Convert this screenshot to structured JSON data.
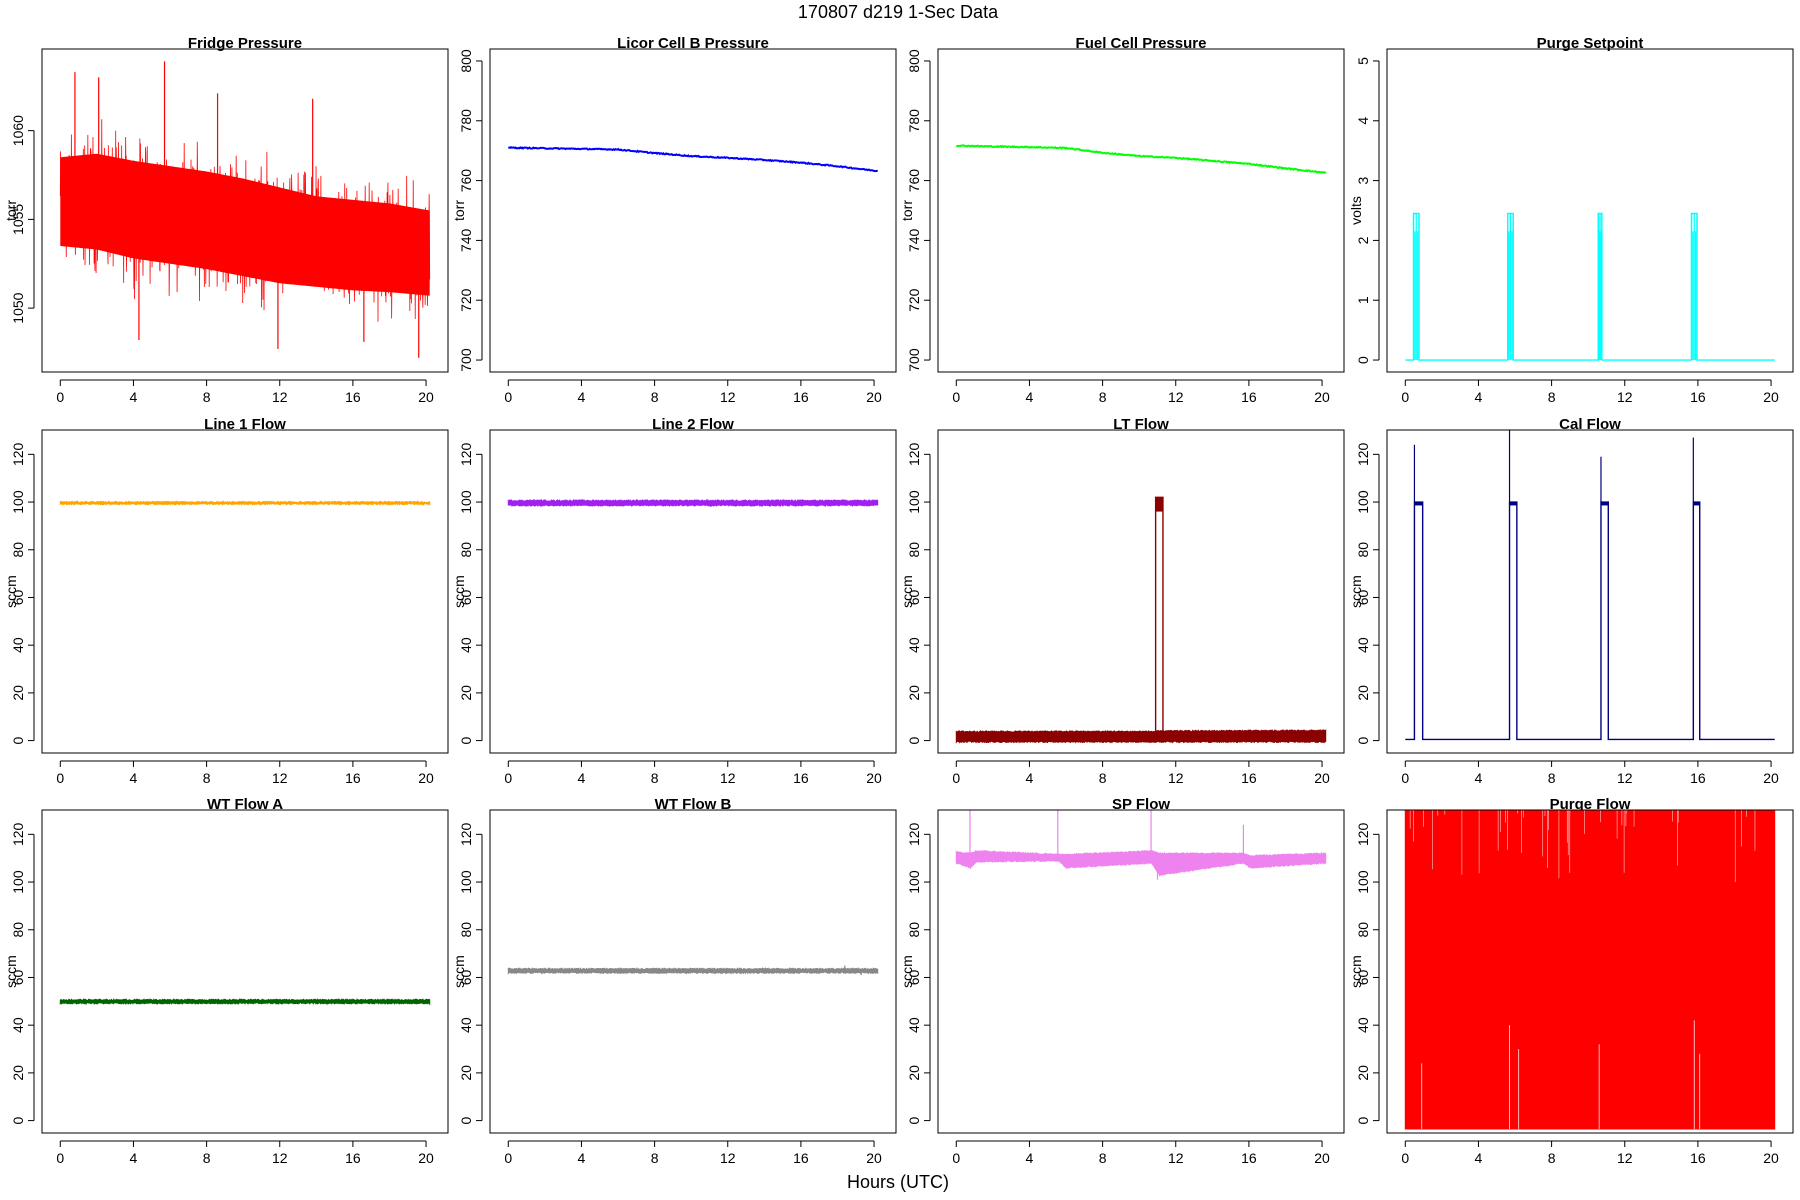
{
  "figure": {
    "title": "170807   d219   1-Sec Data",
    "xlabel": "Hours (UTC)"
  },
  "chart_data": [
    {
      "type": "line",
      "title": "Fridge Pressure",
      "ylabel": "torr",
      "color": "#ff0000",
      "style": "noise",
      "xlim": [
        -1,
        21.2
      ],
      "ylim": [
        1046.4,
        1064.6
      ],
      "xticks": [
        0,
        4,
        8,
        12,
        16,
        20
      ],
      "yticks": [
        1050,
        1055,
        1060
      ],
      "x": [
        0,
        2,
        4,
        6,
        8,
        10,
        12,
        14,
        16,
        18,
        20.2
      ],
      "low": [
        1052.0,
        1051.8,
        1051.3,
        1051.0,
        1050.7,
        1050.3,
        1049.9,
        1049.7,
        1049.5,
        1049.4,
        1049.2
      ],
      "high": [
        1060.0,
        1060.2,
        1059.8,
        1059.5,
        1059.2,
        1058.8,
        1058.3,
        1057.8,
        1057.6,
        1057.4,
        1057.0
      ],
      "spikes": [
        [
          0.8,
          1063.3
        ],
        [
          2.1,
          1063.0
        ],
        [
          5.7,
          1063.9
        ],
        [
          8.6,
          1062.1
        ],
        [
          13.8,
          1061.8
        ],
        [
          4.3,
          1048.2
        ],
        [
          11.9,
          1047.7
        ],
        [
          16.6,
          1048.1
        ],
        [
          19.6,
          1047.2
        ]
      ]
    },
    {
      "type": "line",
      "title": "Licor Cell B Pressure",
      "ylabel": "torr",
      "color": "#0000ff",
      "style": "line",
      "xlim": [
        -1,
        21.2
      ],
      "ylim": [
        696,
        804
      ],
      "xticks": [
        0,
        4,
        8,
        12,
        16,
        20
      ],
      "yticks": [
        700,
        720,
        740,
        760,
        780,
        800
      ],
      "x": [
        0,
        2,
        4,
        6,
        8,
        10,
        12,
        14,
        16,
        18,
        20.2
      ],
      "y": [
        771.0,
        770.8,
        770.6,
        770.4,
        769.2,
        768.2,
        767.6,
        766.9,
        766.0,
        764.8,
        763.2
      ]
    },
    {
      "type": "line",
      "title": "Fuel Cell Pressure",
      "ylabel": "torr",
      "color": "#00ff00",
      "style": "line",
      "xlim": [
        -1,
        21.2
      ],
      "ylim": [
        696,
        804
      ],
      "xticks": [
        0,
        4,
        8,
        12,
        16,
        20
      ],
      "yticks": [
        700,
        720,
        740,
        760,
        780,
        800
      ],
      "x": [
        0,
        2,
        4,
        6,
        8,
        10,
        12,
        14,
        16,
        18,
        20.2
      ],
      "y": [
        771.7,
        771.4,
        771.2,
        770.9,
        769.3,
        768.2,
        767.6,
        766.6,
        765.6,
        764.1,
        762.6
      ]
    },
    {
      "type": "line",
      "title": "Purge Setpoint",
      "ylabel": "volts",
      "color": "#00ffff",
      "style": "pulse",
      "xlim": [
        -1,
        21.2
      ],
      "ylim": [
        -0.2,
        5.2
      ],
      "xticks": [
        0,
        4,
        8,
        12,
        16,
        20
      ],
      "yticks": [
        0,
        1,
        2,
        3,
        4,
        5
      ],
      "x": [
        0,
        20.2
      ],
      "y": [
        0,
        0
      ],
      "pulses": [
        [
          0.45,
          0.75,
          2.45
        ],
        [
          5.6,
          5.9,
          2.45
        ],
        [
          10.55,
          10.75,
          2.45
        ],
        [
          15.65,
          15.95,
          2.45
        ]
      ]
    },
    {
      "type": "line",
      "title": "Line 1 Flow",
      "ylabel": "sccm",
      "color": "#ffa500",
      "style": "band",
      "xlim": [
        -1,
        21.2
      ],
      "ylim": [
        -5.2,
        130.2
      ],
      "xticks": [
        0,
        4,
        8,
        12,
        16,
        20
      ],
      "yticks": [
        0,
        20,
        40,
        60,
        80,
        100,
        120
      ],
      "x": [
        0,
        20.2
      ],
      "low": [
        99.2,
        99.2
      ],
      "high": [
        100.0,
        100.0
      ]
    },
    {
      "type": "line",
      "title": "Line 2 Flow",
      "ylabel": "sccm",
      "color": "#a020f0",
      "style": "band",
      "xlim": [
        -1,
        21.2
      ],
      "ylim": [
        -5.2,
        130.2
      ],
      "xticks": [
        0,
        4,
        8,
        12,
        16,
        20
      ],
      "yticks": [
        0,
        20,
        40,
        60,
        80,
        100,
        120
      ],
      "x": [
        0,
        20.2
      ],
      "low": [
        98.6,
        98.6
      ],
      "high": [
        100.6,
        100.6
      ]
    },
    {
      "type": "line",
      "title": "LT Flow",
      "ylabel": "sccm",
      "color": "#8b0000",
      "style": "band",
      "xlim": [
        -1,
        21.2
      ],
      "ylim": [
        -5.2,
        130.2
      ],
      "xticks": [
        0,
        4,
        8,
        12,
        16,
        20
      ],
      "yticks": [
        0,
        20,
        40,
        60,
        80,
        100,
        120
      ],
      "x": [
        0,
        10.85,
        11.3,
        20.2
      ],
      "low": [
        -0.5,
        -0.5,
        -0.5,
        -0.5
      ],
      "high": [
        3.8,
        3.8,
        4.0,
        4.2
      ],
      "pulses": [
        [
          10.9,
          11.3,
          102
        ]
      ]
    },
    {
      "type": "line",
      "title": "Cal Flow",
      "ylabel": "sccm",
      "color": "#000080",
      "style": "pulse",
      "xlim": [
        -1,
        21.2
      ],
      "ylim": [
        -5.2,
        130.2
      ],
      "xticks": [
        0,
        4,
        8,
        12,
        16,
        20
      ],
      "yticks": [
        0,
        20,
        40,
        60,
        80,
        100,
        120
      ],
      "x": [
        0,
        20.2
      ],
      "y": [
        0.5,
        0.5
      ],
      "pulses": [
        [
          0.5,
          0.95,
          100
        ],
        [
          5.7,
          6.1,
          100
        ],
        [
          10.7,
          11.1,
          100
        ],
        [
          15.75,
          16.1,
          100
        ]
      ],
      "spikes": [
        [
          0.5,
          124
        ],
        [
          5.7,
          130
        ],
        [
          10.7,
          119
        ],
        [
          15.75,
          127
        ]
      ]
    },
    {
      "type": "line",
      "title": "WT Flow A",
      "ylabel": "sccm",
      "color": "#006400",
      "style": "band",
      "xlim": [
        -1,
        21.2
      ],
      "ylim": [
        -5.2,
        130.2
      ],
      "xticks": [
        0,
        4,
        8,
        12,
        16,
        20
      ],
      "yticks": [
        0,
        20,
        40,
        60,
        80,
        100,
        120
      ],
      "x": [
        0,
        20.2
      ],
      "low": [
        49.2,
        49.2
      ],
      "high": [
        50.6,
        50.6
      ]
    },
    {
      "type": "line",
      "title": "WT Flow B",
      "ylabel": "sccm",
      "color": "#888888",
      "style": "band",
      "xlim": [
        -1,
        21.2
      ],
      "ylim": [
        -5.2,
        130.2
      ],
      "xticks": [
        0,
        4,
        8,
        12,
        16,
        20
      ],
      "yticks": [
        0,
        20,
        40,
        60,
        80,
        100,
        120
      ],
      "x": [
        0,
        20.2
      ],
      "low": [
        62.0,
        62.0
      ],
      "high": [
        63.6,
        63.6
      ],
      "spikes": [
        [
          18.4,
          65
        ],
        [
          19.3,
          61
        ]
      ]
    },
    {
      "type": "line",
      "title": "SP Flow",
      "ylabel": "sccm",
      "color": "#ee82ee",
      "style": "band",
      "xlim": [
        -1,
        21.2
      ],
      "ylim": [
        -5.2,
        130.2
      ],
      "xticks": [
        0,
        4,
        8,
        12,
        16,
        20
      ],
      "yticks": [
        0,
        20,
        40,
        60,
        80,
        100,
        120
      ],
      "x": [
        0,
        0.8,
        1.1,
        5.6,
        6.0,
        10.7,
        11.1,
        15.7,
        16.1,
        20.2
      ],
      "low": [
        108.0,
        106.0,
        108.5,
        109.0,
        106.0,
        108.0,
        103.0,
        108.0,
        106.0,
        108.0
      ],
      "high": [
        112.5,
        112.0,
        113.0,
        111.5,
        111.5,
        113.0,
        112.0,
        112.0,
        111.0,
        112.0
      ],
      "spikes": [
        [
          0.75,
          130
        ],
        [
          5.55,
          130
        ],
        [
          10.65,
          130
        ],
        [
          15.7,
          124
        ],
        [
          11.0,
          101
        ]
      ]
    },
    {
      "type": "line",
      "title": "Purge Flow",
      "ylabel": "sccm",
      "color": "#ff0000",
      "style": "fill",
      "xlim": [
        -1,
        21.2
      ],
      "ylim": [
        -5.2,
        130.2
      ],
      "xticks": [
        0,
        4,
        8,
        12,
        16,
        20
      ],
      "yticks": [
        0,
        20,
        40,
        60,
        80,
        100,
        120
      ],
      "x": [
        0,
        20.2
      ],
      "low": [
        -3.5,
        -3.5
      ],
      "high": [
        130.2,
        130.2
      ]
    }
  ]
}
